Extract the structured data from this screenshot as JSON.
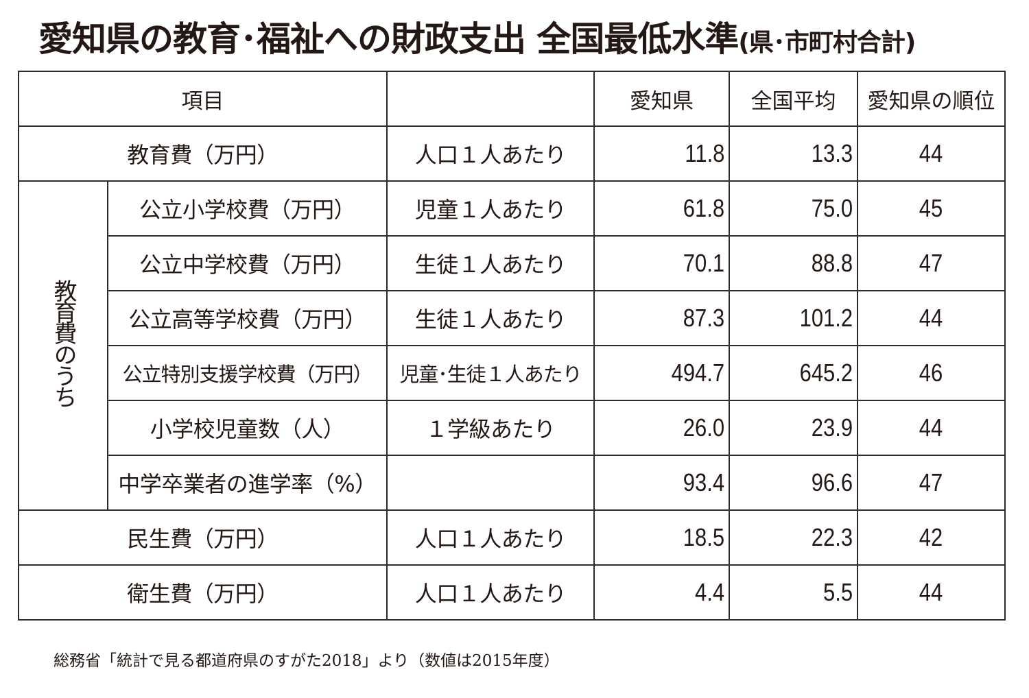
{
  "title": {
    "main": "愛知県の教育･福祉への財政支出 全国最低水準",
    "sub": "(県･市町村合計)"
  },
  "table": {
    "headers": {
      "item": "項目",
      "basis": "",
      "aichi": "愛知県",
      "national": "全国平均",
      "rank": "愛知県の順位"
    },
    "group_label": "教育費のうち",
    "rows": [
      {
        "item": "教育費（万円）",
        "basis": "人口１人あたり",
        "aichi": "11.8",
        "national": "13.3",
        "rank": "44"
      },
      {
        "item": "公立小学校費（万円）",
        "basis": "児童１人あたり",
        "aichi": "61.8",
        "national": "75.0",
        "rank": "45"
      },
      {
        "item": "公立中学校費（万円）",
        "basis": "生徒１人あたり",
        "aichi": "70.1",
        "national": "88.8",
        "rank": "47"
      },
      {
        "item": "公立高等学校費（万円）",
        "basis": "生徒１人あたり",
        "aichi": "87.3",
        "national": "101.2",
        "rank": "44"
      },
      {
        "item": "公立特別支援学校費（万円）",
        "basis": "児童･生徒１人あたり",
        "aichi": "494.7",
        "national": "645.2",
        "rank": "46"
      },
      {
        "item": "小学校児童数（人）",
        "basis": "１学級あたり",
        "aichi": "26.0",
        "national": "23.9",
        "rank": "44"
      },
      {
        "item": "中学卒業者の進学率（%）",
        "basis": "",
        "aichi": "93.4",
        "national": "96.6",
        "rank": "47"
      },
      {
        "item": "民生費（万円）",
        "basis": "人口１人あたり",
        "aichi": "18.5",
        "national": "22.3",
        "rank": "42"
      },
      {
        "item": "衛生費（万円）",
        "basis": "人口１人あたり",
        "aichi": "4.4",
        "national": "5.5",
        "rank": "44"
      }
    ]
  },
  "footnote": "総務省「統計で見る都道府県のすがた2018」より（数値は2015年度）"
}
